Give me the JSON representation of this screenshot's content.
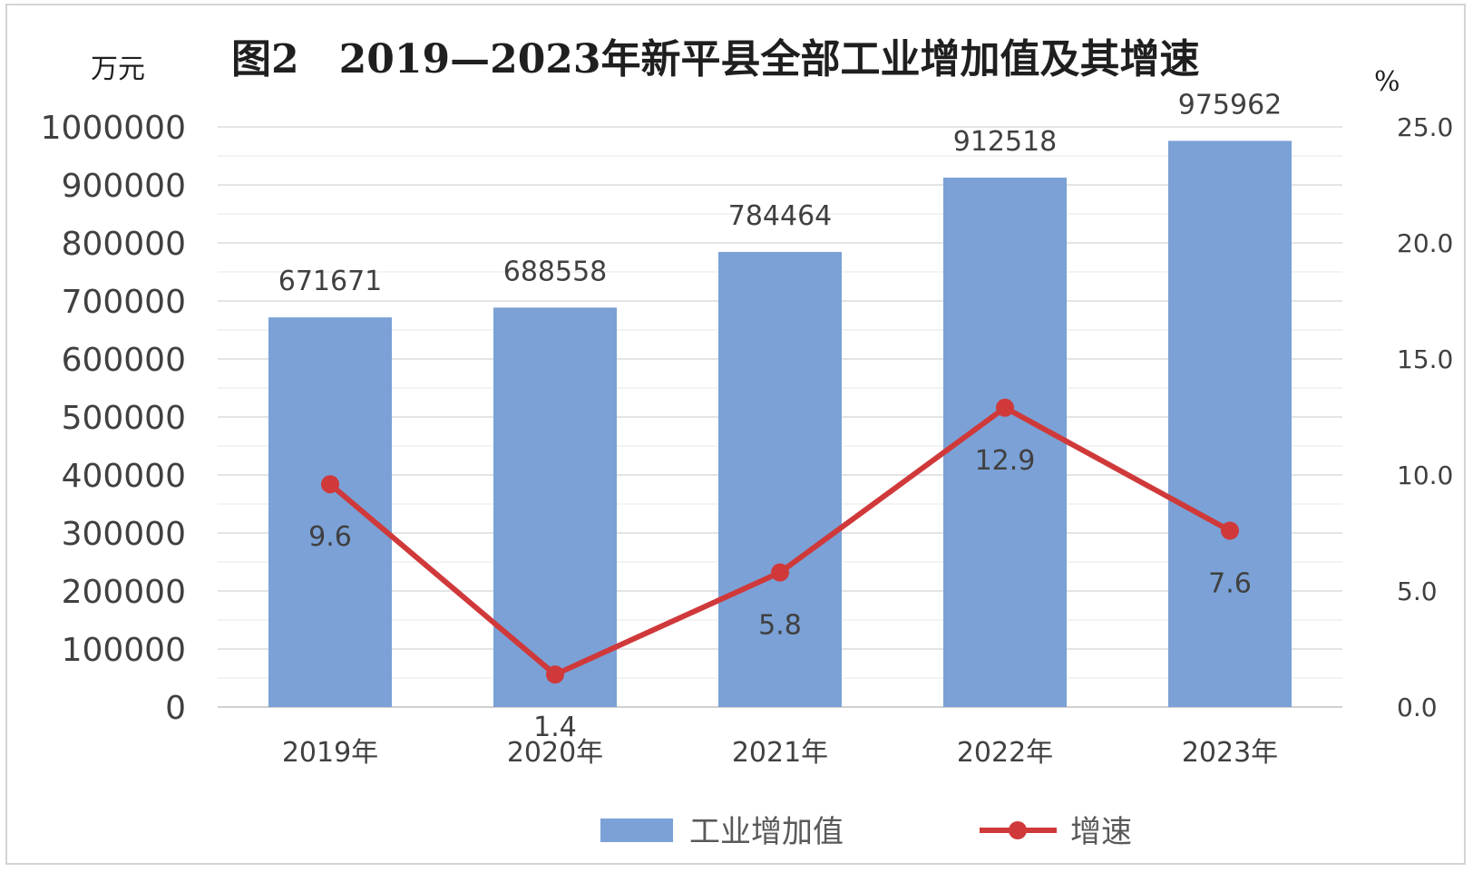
{
  "chart_data": {
    "type": "bar",
    "title": "图2　2019—2023年新平县全部工业增加值及其增速",
    "y_left_unit": "万元",
    "y_right_unit": "%",
    "categories": [
      "2019年",
      "2020年",
      "2021年",
      "2022年",
      "2023年"
    ],
    "ylim": [
      0,
      1000000
    ],
    "y_left_ticks": [
      "0",
      "100000",
      "200000",
      "300000",
      "400000",
      "500000",
      "600000",
      "700000",
      "800000",
      "900000",
      "1000000"
    ],
    "y2lim": [
      0,
      25
    ],
    "y_right_ticks": [
      "0.0",
      "5.0",
      "10.0",
      "15.0",
      "20.0",
      "25.0"
    ],
    "grid": true,
    "legend_position": "bottom",
    "series": [
      {
        "name": "工业增加值",
        "type": "bar",
        "axis": "left",
        "color": "#7ba1d6",
        "values": [
          671671,
          688558,
          784464,
          912518,
          975962
        ],
        "labels": [
          "671671",
          "688558",
          "784464",
          "912518",
          "975962"
        ]
      },
      {
        "name": "增速",
        "type": "line",
        "axis": "right",
        "color": "#d0393a",
        "values": [
          9.6,
          1.4,
          5.8,
          12.9,
          7.6
        ],
        "labels": [
          "9.6",
          "1.4",
          "5.8",
          "12.9",
          "7.6"
        ]
      }
    ]
  }
}
